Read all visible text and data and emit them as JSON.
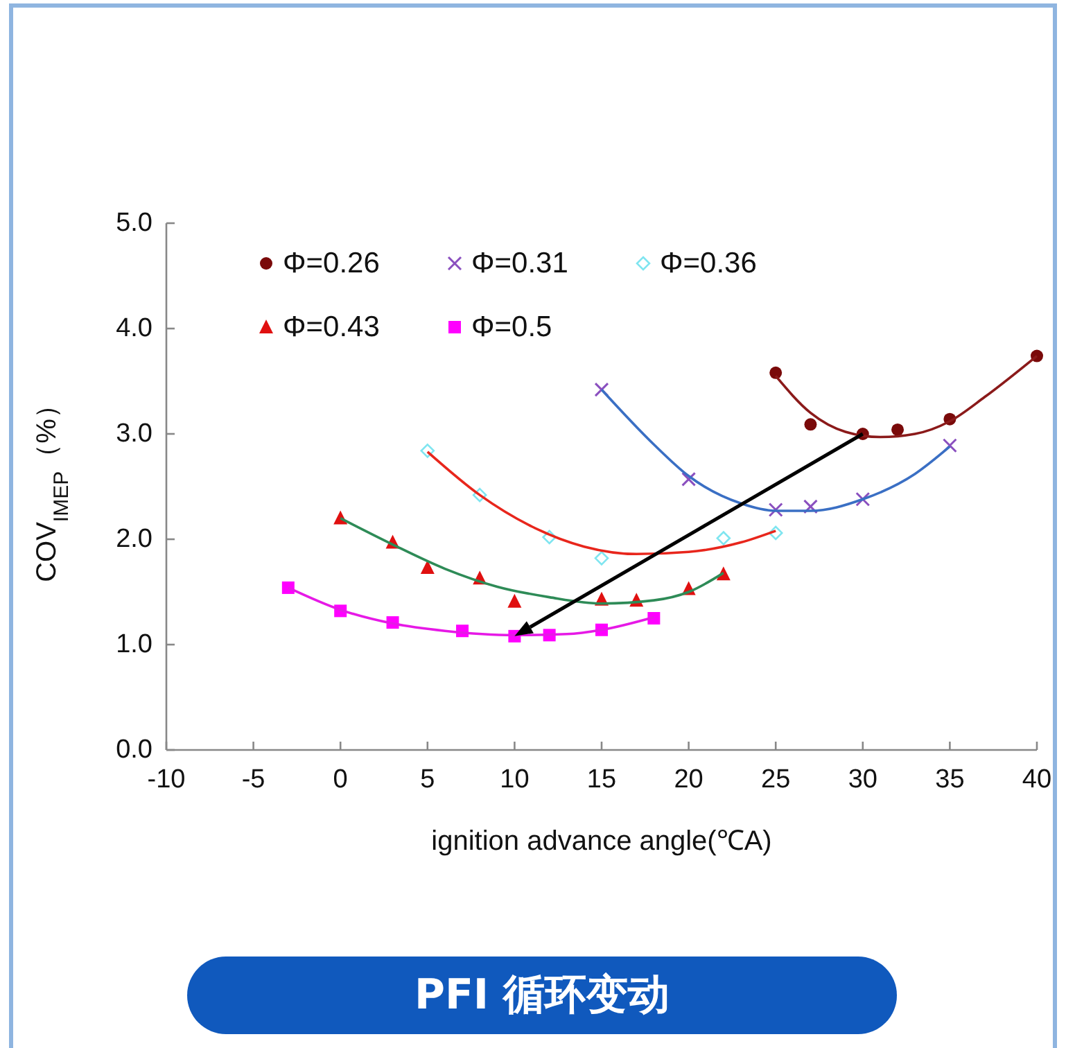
{
  "chart_data": {
    "type": "scatter",
    "xlabel": "ignition advance angle(℃A)",
    "ylabel": "COV$_{IMEP}$（%）",
    "xlim": [
      -10,
      40
    ],
    "xticks": [
      -10,
      -5,
      0,
      5,
      10,
      15,
      20,
      25,
      30,
      35,
      40
    ],
    "ylim": [
      0,
      5
    ],
    "yticks": [
      {
        "value": 0,
        "label": "0.0"
      },
      {
        "value": 1,
        "label": "1.0"
      },
      {
        "value": 2,
        "label": "2.0"
      },
      {
        "value": 3,
        "label": "3.0"
      },
      {
        "value": 4,
        "label": "4.0"
      },
      {
        "value": 5,
        "label": "5.0"
      }
    ],
    "grid": false,
    "legend": "top left",
    "annotations": [
      "PFI 循环变动"
    ],
    "series": [
      {
        "name": "Φ=0.26",
        "marker": "circle",
        "color": "#7a0a0a",
        "x": [
          25,
          27,
          30,
          32,
          35,
          40
        ],
        "values": [
          3.58,
          3.09,
          3.0,
          3.04,
          3.14,
          3.74
        ]
      },
      {
        "name": "Φ=0.31",
        "marker": "cross",
        "color": "#8a4fbf",
        "x": [
          15,
          20,
          25,
          27,
          30,
          35
        ],
        "values": [
          3.42,
          2.57,
          2.28,
          2.31,
          2.38,
          2.89
        ]
      },
      {
        "name": "Φ=0.36",
        "marker": "diamond",
        "color": "#7fe5f0",
        "x": [
          5,
          8,
          12,
          15,
          22,
          25
        ],
        "values": [
          2.84,
          2.42,
          2.02,
          1.82,
          2.01,
          2.06
        ]
      },
      {
        "name": "Φ=0.43",
        "marker": "triangle",
        "color": "#e01010",
        "x": [
          0,
          3,
          5,
          8,
          10,
          15,
          17,
          20,
          22
        ],
        "values": [
          2.2,
          1.97,
          1.73,
          1.63,
          1.41,
          1.43,
          1.42,
          1.53,
          1.67
        ]
      },
      {
        "name": "Φ=0.5",
        "marker": "square",
        "color": "#ff00ff",
        "x": [
          -3,
          0,
          3,
          7,
          10,
          12,
          15,
          18
        ],
        "values": [
          1.54,
          1.32,
          1.21,
          1.13,
          1.08,
          1.09,
          1.14,
          1.25
        ]
      },
      {
        "type": "line",
        "marker": "none",
        "color": "#8b1a1a",
        "x": [
          25,
          27,
          29,
          31,
          33,
          35,
          37,
          40
        ],
        "values": [
          3.55,
          3.2,
          3.02,
          2.97,
          3.0,
          3.12,
          3.35,
          3.74
        ]
      },
      {
        "type": "line",
        "marker": "none",
        "color": "#3a6fc4",
        "x": [
          15,
          18,
          20,
          23,
          25,
          27,
          30,
          33,
          35
        ],
        "values": [
          3.42,
          2.9,
          2.6,
          2.34,
          2.27,
          2.27,
          2.38,
          2.62,
          2.88
        ]
      },
      {
        "type": "line",
        "marker": "none",
        "color": "#e8261c",
        "x": [
          5,
          8,
          11,
          14,
          17,
          20,
          23,
          25
        ],
        "values": [
          2.83,
          2.42,
          2.12,
          1.93,
          1.86,
          1.88,
          1.97,
          2.08
        ]
      },
      {
        "type": "line",
        "marker": "none",
        "color": "#2e8b57",
        "x": [
          0,
          3,
          6,
          9,
          12,
          15,
          18,
          20,
          22
        ],
        "values": [
          2.2,
          1.95,
          1.72,
          1.55,
          1.45,
          1.39,
          1.42,
          1.5,
          1.68
        ]
      },
      {
        "type": "line",
        "marker": "none",
        "color": "#e619e6",
        "x": [
          -3,
          0,
          3,
          6,
          10,
          13,
          15,
          18
        ],
        "values": [
          1.54,
          1.33,
          1.2,
          1.13,
          1.09,
          1.1,
          1.14,
          1.26
        ]
      }
    ]
  }
}
